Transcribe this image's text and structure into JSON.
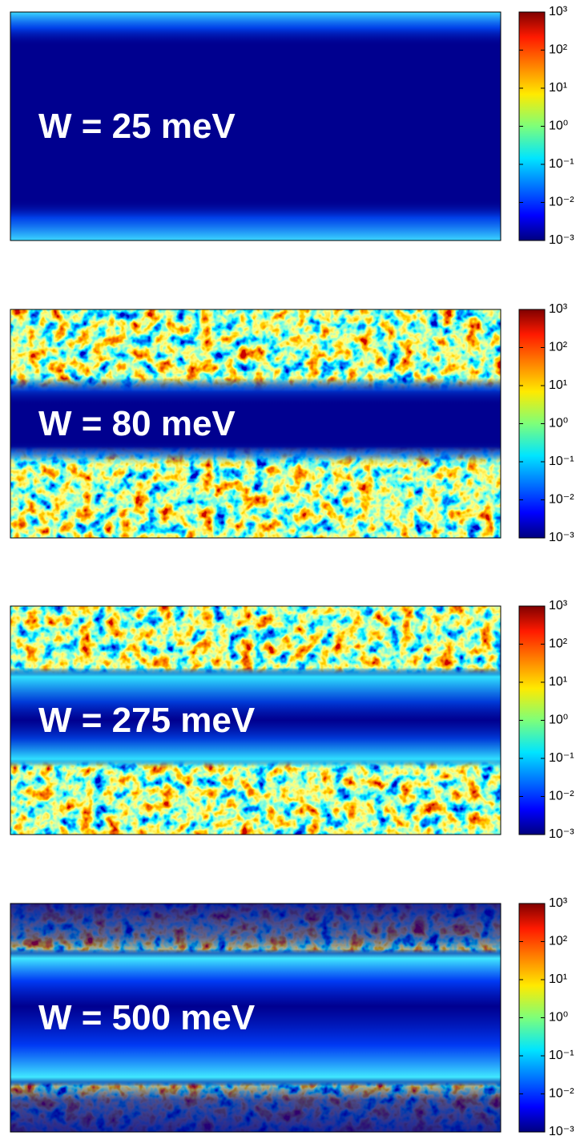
{
  "chart_data": [
    {
      "type": "heatmap",
      "annotation": "W = 25 meV",
      "colormap": "jet",
      "colorbar": {
        "scale": "log",
        "lim": [
          0.001,
          1000
        ],
        "ticks": [
          {
            "value": 0.001,
            "label": "10⁻³"
          },
          {
            "value": 0.01,
            "label": "10⁻²"
          },
          {
            "value": 0.1,
            "label": "10⁻¹"
          },
          {
            "value": 1,
            "label": "10⁰"
          },
          {
            "value": 10,
            "label": "10¹"
          },
          {
            "value": 100,
            "label": "10²"
          },
          {
            "value": 1000,
            "label": "10³"
          }
        ]
      }
    },
    {
      "type": "heatmap",
      "annotation": "W = 80 meV",
      "colormap": "jet",
      "colorbar": {
        "scale": "log",
        "lim": [
          0.001,
          1000
        ],
        "ticks": [
          {
            "value": 0.001,
            "label": "10⁻³"
          },
          {
            "value": 0.01,
            "label": "10⁻²"
          },
          {
            "value": 0.1,
            "label": "10⁻¹"
          },
          {
            "value": 1,
            "label": "10⁰"
          },
          {
            "value": 10,
            "label": "10¹"
          },
          {
            "value": 100,
            "label": "10²"
          },
          {
            "value": 1000,
            "label": "10³"
          }
        ]
      }
    },
    {
      "type": "heatmap",
      "annotation": "W = 275 meV",
      "colormap": "jet",
      "colorbar": {
        "scale": "log",
        "lim": [
          0.001,
          1000
        ],
        "ticks": [
          {
            "value": 0.001,
            "label": "10⁻³"
          },
          {
            "value": 0.01,
            "label": "10⁻²"
          },
          {
            "value": 0.1,
            "label": "10⁻¹"
          },
          {
            "value": 1,
            "label": "10⁰"
          },
          {
            "value": 10,
            "label": "10¹"
          },
          {
            "value": 100,
            "label": "10²"
          },
          {
            "value": 1000,
            "label": "10³"
          }
        ]
      }
    },
    {
      "type": "heatmap",
      "annotation": "W = 500 meV",
      "colormap": "jet",
      "colorbar": {
        "scale": "log",
        "lim": [
          0.001,
          1000
        ],
        "ticks": [
          {
            "value": 0.001,
            "label": "10⁻³"
          },
          {
            "value": 0.01,
            "label": "10⁻²"
          },
          {
            "value": 0.1,
            "label": "10⁻¹"
          },
          {
            "value": 1,
            "label": "10⁰"
          },
          {
            "value": 10,
            "label": "10¹"
          },
          {
            "value": 100,
            "label": "10²"
          },
          {
            "value": 1000,
            "label": "10³"
          }
        ]
      }
    }
  ]
}
